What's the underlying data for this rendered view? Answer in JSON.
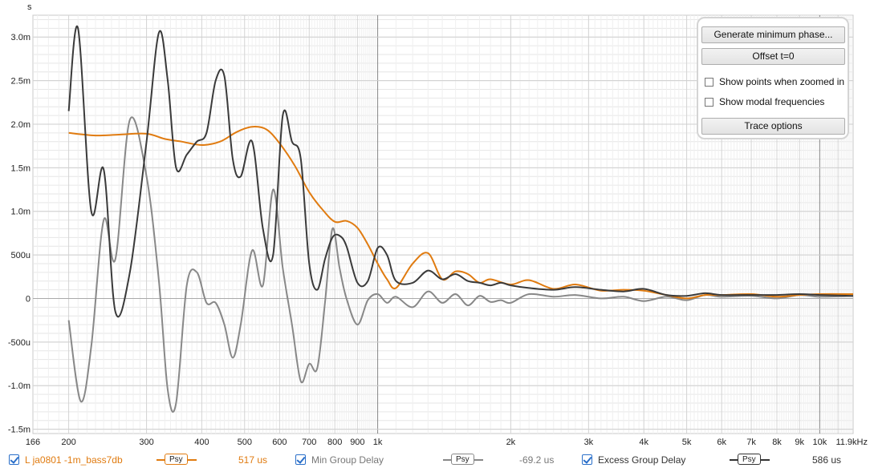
{
  "chart_data": {
    "type": "line",
    "unit_label": "s",
    "x_scale": "log",
    "xlim": [
      166,
      11900
    ],
    "ylim": [
      -0.00155,
      0.00325
    ],
    "x_tick_labels": [
      {
        "x": 166,
        "label": "166"
      },
      {
        "x": 200,
        "label": "200"
      },
      {
        "x": 300,
        "label": "300"
      },
      {
        "x": 400,
        "label": "400"
      },
      {
        "x": 500,
        "label": "500"
      },
      {
        "x": 600,
        "label": "600"
      },
      {
        "x": 700,
        "label": "700"
      },
      {
        "x": 800,
        "label": "800"
      },
      {
        "x": 900,
        "label": "900"
      },
      {
        "x": 1000,
        "label": "1k"
      },
      {
        "x": 2000,
        "label": "2k"
      },
      {
        "x": 3000,
        "label": "3k"
      },
      {
        "x": 4000,
        "label": "4k"
      },
      {
        "x": 5000,
        "label": "5k"
      },
      {
        "x": 6000,
        "label": "6k"
      },
      {
        "x": 7000,
        "label": "7k"
      },
      {
        "x": 8000,
        "label": "8k"
      },
      {
        "x": 9000,
        "label": "9k"
      },
      {
        "x": 10000,
        "label": "10k"
      },
      {
        "x": 11900,
        "label": "11.9kHz"
      }
    ],
    "y_tick_labels": [
      {
        "y": 0.003,
        "label": "3.0m"
      },
      {
        "y": 0.0025,
        "label": "2.5m"
      },
      {
        "y": 0.002,
        "label": "2.0m"
      },
      {
        "y": 0.0015,
        "label": "1.5m"
      },
      {
        "y": 0.001,
        "label": "1.0m"
      },
      {
        "y": 0.0005,
        "label": "500u"
      },
      {
        "y": 0,
        "label": "0"
      },
      {
        "y": -0.0005,
        "label": "-500u"
      },
      {
        "y": -0.001,
        "label": "-1.0m"
      },
      {
        "y": -0.0015,
        "label": "-1.5m"
      }
    ],
    "grid": true,
    "series": [
      {
        "name": "L ja0801 -1m_bass7db",
        "color": "#e07b10",
        "x": [
          200,
          230,
          260,
          300,
          330,
          360,
          400,
          440,
          480,
          520,
          560,
          600,
          650,
          700,
          750,
          800,
          850,
          900,
          950,
          1000,
          1050,
          1100,
          1200,
          1300,
          1400,
          1500,
          1600,
          1700,
          1800,
          2000,
          2200,
          2500,
          2800,
          3200,
          3600,
          4000,
          4500,
          5000,
          5500,
          6000,
          7000,
          8000,
          9000,
          10000,
          11900
        ],
        "values": [
          0.0019,
          0.00187,
          0.00188,
          0.00189,
          0.00183,
          0.0018,
          0.00176,
          0.0018,
          0.00191,
          0.00197,
          0.00194,
          0.00178,
          0.00152,
          0.00122,
          0.00102,
          0.00088,
          0.00089,
          0.00081,
          0.00062,
          0.0004,
          0.00022,
          0.00012,
          0.0004,
          0.00052,
          0.00022,
          0.00031,
          0.00028,
          0.00018,
          0.00022,
          0.00016,
          0.00021,
          0.00011,
          0.00016,
          9e-05,
          0.0001,
          9e-05,
          4e-05,
          0.0,
          4e-05,
          4e-05,
          5e-05,
          2e-05,
          4e-05,
          5e-05,
          5e-05
        ]
      },
      {
        "name": "Min Group Delay",
        "color": "#888888",
        "x": [
          200,
          213,
          225,
          240,
          255,
          275,
          300,
          320,
          335,
          350,
          370,
          390,
          410,
          430,
          450,
          470,
          490,
          520,
          550,
          580,
          610,
          640,
          670,
          700,
          730,
          760,
          790,
          820,
          850,
          900,
          950,
          1000,
          1050,
          1100,
          1200,
          1300,
          1400,
          1500,
          1600,
          1700,
          1800,
          1900,
          2000,
          2200,
          2500,
          2800,
          3200,
          3600,
          4000,
          4500,
          5000,
          5500,
          6000,
          7000,
          8000,
          9000,
          10000,
          11900
        ],
        "values": [
          -0.00025,
          -0.00118,
          -0.00055,
          0.0009,
          0.00045,
          0.00205,
          0.0014,
          0.0002,
          -0.00105,
          -0.0012,
          0.00015,
          0.0003,
          -5e-05,
          -5e-05,
          -0.0003,
          -0.00068,
          -0.0003,
          0.00055,
          0.00015,
          0.00125,
          0.00035,
          -0.0003,
          -0.00095,
          -0.00075,
          -0.0008,
          -5e-05,
          0.0008,
          0.00035,
          0.0,
          -0.0003,
          -2e-05,
          5e-05,
          -5e-05,
          2e-05,
          -0.0001,
          8e-05,
          -5e-05,
          5e-05,
          -8e-05,
          3e-05,
          -4e-05,
          -2e-05,
          -5e-05,
          5e-05,
          2e-05,
          4e-05,
          0.0,
          2e-05,
          -3e-05,
          2e-05,
          -2e-05,
          4e-05,
          2e-05,
          3e-05,
          0.0,
          4e-05,
          2e-05,
          3e-05
        ]
      },
      {
        "name": "Excess Group Delay",
        "color": "#3a3a3a",
        "x": [
          200,
          210,
          225,
          240,
          255,
          275,
          300,
          320,
          335,
          350,
          370,
          390,
          410,
          430,
          450,
          470,
          490,
          520,
          550,
          580,
          610,
          640,
          670,
          700,
          730,
          760,
          790,
          820,
          850,
          900,
          950,
          1000,
          1050,
          1100,
          1200,
          1300,
          1400,
          1500,
          1600,
          1700,
          1800,
          1900,
          2000,
          2200,
          2500,
          2800,
          3200,
          3600,
          4000,
          4500,
          5000,
          5500,
          6000,
          7000,
          8000,
          9000,
          10000,
          11900
        ],
        "values": [
          0.00215,
          0.0031,
          0.001,
          0.00148,
          -0.00015,
          0.0003,
          0.0018,
          0.00305,
          0.0025,
          0.0015,
          0.00165,
          0.0018,
          0.0019,
          0.0025,
          0.00255,
          0.0016,
          0.0014,
          0.0018,
          0.0008,
          0.0005,
          0.0021,
          0.0018,
          0.0016,
          0.0004,
          0.0001,
          0.00045,
          0.0007,
          0.00072,
          0.0006,
          0.00018,
          0.0002,
          0.00058,
          0.0005,
          0.0002,
          0.00018,
          0.00032,
          0.00022,
          0.00028,
          0.0002,
          0.00018,
          0.00015,
          0.00018,
          0.00015,
          0.00012,
          0.0001,
          0.00013,
          0.0001,
          8e-05,
          0.00011,
          4e-05,
          3e-05,
          6e-05,
          4e-05,
          4e-05,
          4e-05,
          5e-05,
          4e-05,
          3e-05
        ]
      }
    ]
  },
  "panel": {
    "generate_button": "Generate minimum phase...",
    "offset_button": "Offset t=0",
    "show_points_label": "Show points when zoomed in",
    "show_modal_label": "Show modal frequencies",
    "trace_options_button": "Trace options"
  },
  "legend": {
    "items": [
      {
        "label": "L ja0801 -1m_bass7db",
        "psy": "Psy",
        "value": "517 us",
        "color": "#e07b10"
      },
      {
        "label": "Min Group Delay",
        "psy": "Psy",
        "value": "-69.2 us",
        "color": "#888888"
      },
      {
        "label": "Excess Group Delay",
        "psy": "Psy",
        "value": "586 us",
        "color": "#3a3a3a"
      }
    ]
  }
}
